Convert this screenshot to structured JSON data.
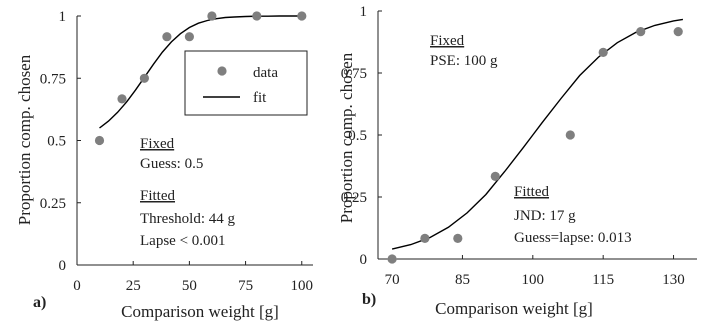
{
  "chart_data": [
    {
      "type": "scatter",
      "panel_label": "a)",
      "xlabel": "Comparison weight [g]",
      "ylabel": "Proportion comp. chosen",
      "xlim": [
        0,
        105
      ],
      "ylim": [
        0,
        1
      ],
      "xticks": [
        0,
        25,
        50,
        75,
        100
      ],
      "yticks": [
        0,
        0.25,
        0.5,
        0.75,
        1
      ],
      "ytick_labels": [
        "0",
        "0.25",
        "0.5",
        "0.75",
        "1"
      ],
      "series": [
        {
          "name": "data",
          "x": [
            10,
            20,
            30,
            40,
            50,
            60,
            80,
            100
          ],
          "y": [
            0.5,
            0.667,
            0.75,
            0.917,
            0.917,
            1.0,
            1.0,
            1.0
          ],
          "color": "#7f7f7f"
        },
        {
          "name": "fit",
          "x": [
            10,
            14,
            18,
            22,
            26,
            30,
            34,
            38,
            42,
            46,
            50,
            54,
            58,
            62,
            66,
            70,
            75,
            80,
            85,
            90,
            95,
            100
          ],
          "y": [
            0.55,
            0.578,
            0.613,
            0.654,
            0.702,
            0.754,
            0.806,
            0.855,
            0.896,
            0.929,
            0.954,
            0.971,
            0.982,
            0.989,
            0.994,
            0.996,
            0.998,
            0.999,
            0.999,
            1.0,
            1.0,
            1.0
          ],
          "color": "#000000"
        }
      ],
      "legend": {
        "position": "top-right",
        "entries": [
          "data",
          "fit"
        ]
      },
      "annotations": {
        "fixed_header": "Fixed",
        "fixed_lines": [
          "Guess: 0.5"
        ],
        "fitted_header": "Fitted",
        "fitted_lines": [
          "Threshold: 44 g",
          "Lapse < 0.001"
        ]
      }
    },
    {
      "type": "scatter",
      "panel_label": "b)",
      "xlabel": "Comparison weight [g]",
      "ylabel": "Proportion comp. chosen",
      "xlim": [
        67,
        135
      ],
      "ylim": [
        0,
        1
      ],
      "xticks": [
        70,
        85,
        100,
        115,
        130
      ],
      "yticks": [
        0,
        0.25,
        0.5,
        0.75,
        1
      ],
      "ytick_labels": [
        "0",
        "0.25",
        "0.5",
        "0.75",
        "1"
      ],
      "series": [
        {
          "name": "data",
          "x": [
            70,
            77,
            84,
            92,
            108,
            115,
            123,
            131
          ],
          "y": [
            0.0,
            0.083,
            0.083,
            0.333,
            0.5,
            0.833,
            0.917,
            0.917
          ],
          "color": "#7f7f7f"
        },
        {
          "name": "fit",
          "x": [
            70,
            74,
            78,
            82,
            86,
            90,
            94,
            98,
            100,
            102,
            106,
            110,
            114,
            118,
            122,
            126,
            130,
            132
          ],
          "y": [
            0.04,
            0.058,
            0.086,
            0.128,
            0.186,
            0.26,
            0.353,
            0.45,
            0.5,
            0.55,
            0.647,
            0.74,
            0.814,
            0.872,
            0.914,
            0.942,
            0.96,
            0.966
          ],
          "color": "#000000"
        }
      ],
      "annotations": {
        "fixed_header": "Fixed",
        "fixed_lines": [
          "PSE: 100 g"
        ],
        "fitted_header": "Fitted",
        "fitted_lines": [
          "JND: 17 g",
          "Guess=lapse: 0.013"
        ]
      }
    }
  ]
}
